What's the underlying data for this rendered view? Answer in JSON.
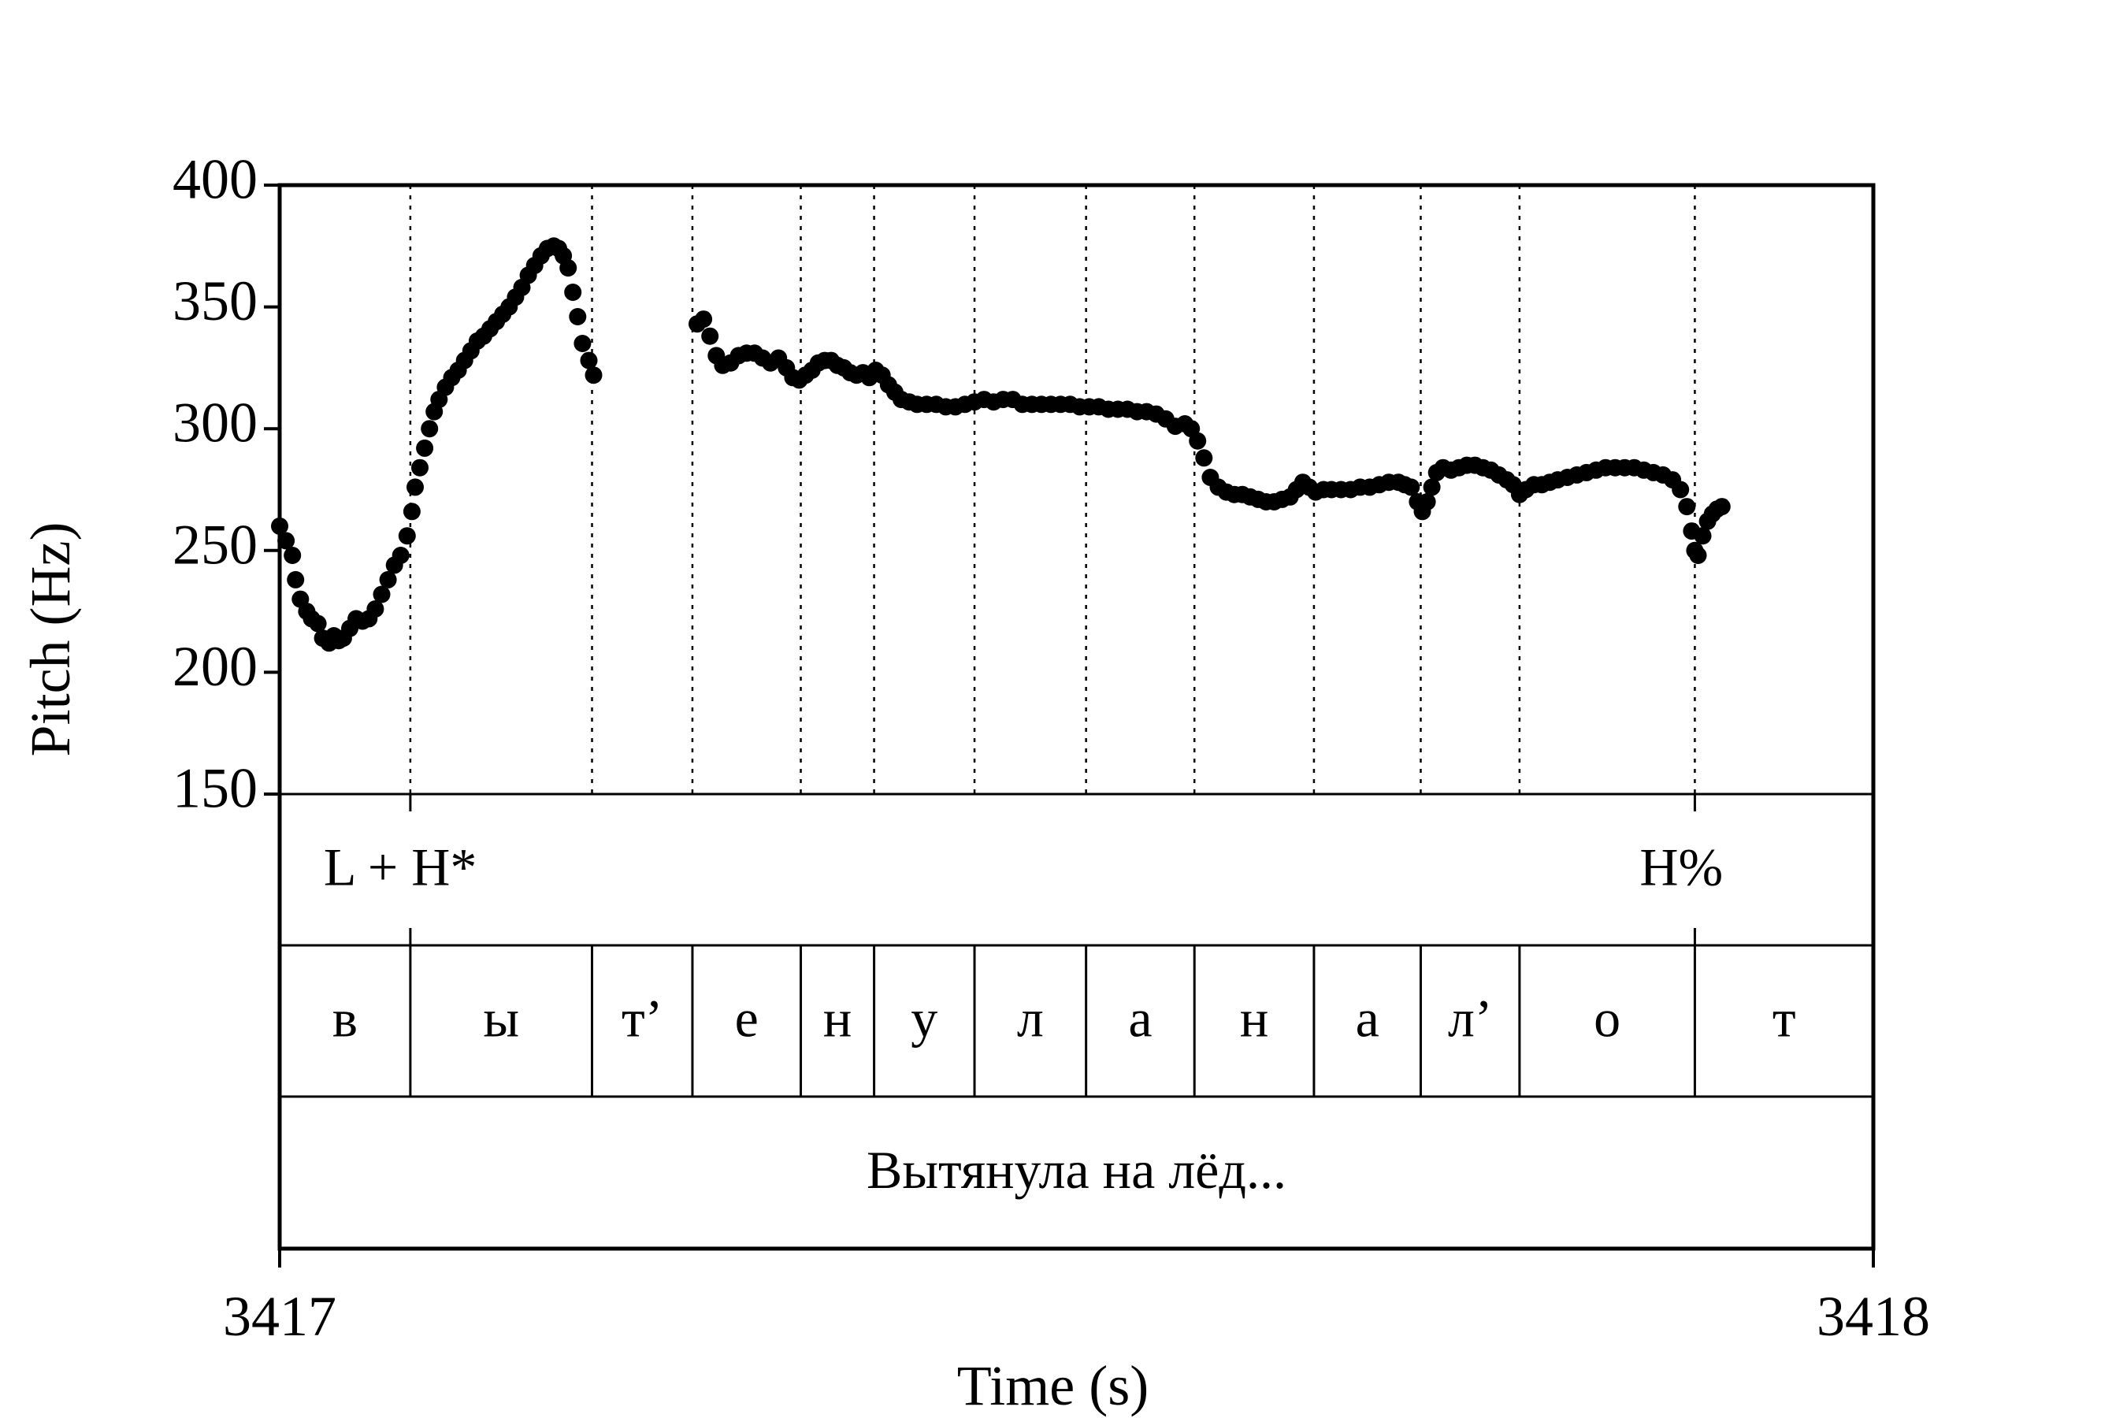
{
  "chart_data": {
    "type": "scatter",
    "title": "",
    "xlabel": "Time (s)",
    "ylabel": "Pitch (Hz)",
    "xlim": [
      3417,
      3418
    ],
    "ylim": [
      150,
      400
    ],
    "x_tick_labels": [
      "3417",
      "3418"
    ],
    "y_tick_labels": [
      "150",
      "200",
      "250",
      "300",
      "350",
      "400"
    ],
    "y_ticks": [
      150,
      200,
      250,
      300,
      350,
      400
    ],
    "x_ticks": [
      3417,
      3418
    ],
    "grid": false,
    "boundaries": [
      3417.082,
      3417.196,
      3417.259,
      3417.327,
      3417.373,
      3417.436,
      3417.506,
      3417.574,
      3417.649,
      3417.716,
      3417.778,
      3417.888
    ],
    "tone_tier": [
      {
        "label": "L + H*",
        "time": 3417.082
      },
      {
        "label": "H%",
        "time": 3417.888
      }
    ],
    "segment_tier": {
      "boundaries": [
        3417.0,
        3417.082,
        3417.196,
        3417.259,
        3417.327,
        3417.373,
        3417.436,
        3417.506,
        3417.574,
        3417.649,
        3417.716,
        3417.778,
        3417.888,
        3418.0
      ],
      "labels": [
        "в",
        "ы",
        "т’",
        "е",
        "н",
        "у",
        "л",
        "а",
        "н",
        "а",
        "л’",
        "о",
        "т"
      ]
    },
    "phrase_tier": {
      "label": "Вытянула на лёд...",
      "start": 3417.0,
      "end": 3418.0
    },
    "series": [
      {
        "points": [
          [
            3417.0,
            260
          ],
          [
            3417.004,
            254
          ],
          [
            3417.008,
            248
          ],
          [
            3417.01,
            238
          ],
          [
            3417.013,
            230
          ],
          [
            3417.017,
            225
          ],
          [
            3417.02,
            222
          ],
          [
            3417.024,
            220
          ],
          [
            3417.027,
            214
          ],
          [
            3417.031,
            212
          ],
          [
            3417.034,
            215
          ],
          [
            3417.037,
            213
          ],
          [
            3417.04,
            214
          ],
          [
            3417.044,
            218
          ],
          [
            3417.048,
            222
          ],
          [
            3417.052,
            221
          ],
          [
            3417.056,
            222
          ],
          [
            3417.06,
            226
          ],
          [
            3417.064,
            232
          ],
          [
            3417.068,
            238
          ],
          [
            3417.072,
            244
          ],
          [
            3417.076,
            248
          ],
          [
            3417.08,
            256
          ],
          [
            3417.083,
            266
          ],
          [
            3417.085,
            276
          ],
          [
            3417.088,
            284
          ],
          [
            3417.091,
            292
          ],
          [
            3417.094,
            300
          ],
          [
            3417.097,
            307
          ],
          [
            3417.1,
            312
          ],
          [
            3417.104,
            317
          ],
          [
            3417.108,
            321
          ],
          [
            3417.112,
            324
          ],
          [
            3417.116,
            328
          ],
          [
            3417.12,
            332
          ],
          [
            3417.124,
            336
          ],
          [
            3417.128,
            338
          ],
          [
            3417.132,
            341
          ],
          [
            3417.136,
            344
          ],
          [
            3417.14,
            347
          ],
          [
            3417.144,
            350
          ],
          [
            3417.148,
            354
          ],
          [
            3417.152,
            358
          ],
          [
            3417.156,
            363
          ],
          [
            3417.16,
            367
          ],
          [
            3417.164,
            371
          ],
          [
            3417.168,
            374
          ],
          [
            3417.172,
            375
          ],
          [
            3417.175,
            374
          ],
          [
            3417.178,
            371
          ],
          [
            3417.181,
            366
          ],
          [
            3417.184,
            356
          ],
          [
            3417.187,
            346
          ],
          [
            3417.19,
            335
          ],
          [
            3417.194,
            328
          ],
          [
            3417.197,
            322
          ],
          [
            3417.262,
            343
          ],
          [
            3417.266,
            345
          ],
          [
            3417.27,
            338
          ],
          [
            3417.274,
            330
          ],
          [
            3417.278,
            326
          ],
          [
            3417.283,
            327
          ],
          [
            3417.288,
            330
          ],
          [
            3417.293,
            331
          ],
          [
            3417.298,
            331
          ],
          [
            3417.303,
            329
          ],
          [
            3417.308,
            327
          ],
          [
            3417.313,
            329
          ],
          [
            3417.318,
            325
          ],
          [
            3417.322,
            321
          ],
          [
            3417.326,
            320
          ],
          [
            3417.33,
            322
          ],
          [
            3417.334,
            324
          ],
          [
            3417.338,
            327
          ],
          [
            3417.342,
            328
          ],
          [
            3417.346,
            328
          ],
          [
            3417.35,
            326
          ],
          [
            3417.354,
            325
          ],
          [
            3417.358,
            323
          ],
          [
            3417.362,
            322
          ],
          [
            3417.366,
            323
          ],
          [
            3417.37,
            321
          ],
          [
            3417.374,
            324
          ],
          [
            3417.378,
            322
          ],
          [
            3417.382,
            318
          ],
          [
            3417.386,
            315
          ],
          [
            3417.39,
            312
          ],
          [
            3417.395,
            311
          ],
          [
            3417.4,
            310
          ],
          [
            3417.406,
            310
          ],
          [
            3417.412,
            310
          ],
          [
            3417.418,
            309
          ],
          [
            3417.424,
            309
          ],
          [
            3417.43,
            310
          ],
          [
            3417.436,
            311
          ],
          [
            3417.442,
            312
          ],
          [
            3417.448,
            311
          ],
          [
            3417.454,
            312
          ],
          [
            3417.46,
            312
          ],
          [
            3417.466,
            310
          ],
          [
            3417.472,
            310
          ],
          [
            3417.478,
            310
          ],
          [
            3417.484,
            310
          ],
          [
            3417.49,
            310
          ],
          [
            3417.496,
            310
          ],
          [
            3417.502,
            309
          ],
          [
            3417.508,
            309
          ],
          [
            3417.514,
            309
          ],
          [
            3417.52,
            308
          ],
          [
            3417.526,
            308
          ],
          [
            3417.532,
            308
          ],
          [
            3417.538,
            307
          ],
          [
            3417.544,
            307
          ],
          [
            3417.55,
            306
          ],
          [
            3417.556,
            304
          ],
          [
            3417.562,
            301
          ],
          [
            3417.568,
            302
          ],
          [
            3417.572,
            300
          ],
          [
            3417.576,
            295
          ],
          [
            3417.58,
            288
          ],
          [
            3417.584,
            280
          ],
          [
            3417.589,
            276
          ],
          [
            3417.594,
            274
          ],
          [
            3417.599,
            273
          ],
          [
            3417.604,
            273
          ],
          [
            3417.609,
            272
          ],
          [
            3417.614,
            271
          ],
          [
            3417.619,
            270
          ],
          [
            3417.624,
            270
          ],
          [
            3417.629,
            271
          ],
          [
            3417.634,
            272
          ],
          [
            3417.638,
            275
          ],
          [
            3417.642,
            278
          ],
          [
            3417.646,
            276
          ],
          [
            3417.65,
            274
          ],
          [
            3417.655,
            275
          ],
          [
            3417.66,
            275
          ],
          [
            3417.666,
            275
          ],
          [
            3417.672,
            275
          ],
          [
            3417.678,
            276
          ],
          [
            3417.684,
            276
          ],
          [
            3417.69,
            277
          ],
          [
            3417.696,
            278
          ],
          [
            3417.702,
            278
          ],
          [
            3417.706,
            277
          ],
          [
            3417.71,
            276
          ],
          [
            3417.714,
            270
          ],
          [
            3417.717,
            266
          ],
          [
            3417.72,
            270
          ],
          [
            3417.723,
            276
          ],
          [
            3417.726,
            282
          ],
          [
            3417.73,
            284
          ],
          [
            3417.735,
            283
          ],
          [
            3417.74,
            284
          ],
          [
            3417.745,
            285
          ],
          [
            3417.75,
            285
          ],
          [
            3417.755,
            284
          ],
          [
            3417.76,
            283
          ],
          [
            3417.765,
            281
          ],
          [
            3417.77,
            279
          ],
          [
            3417.774,
            277
          ],
          [
            3417.778,
            273
          ],
          [
            3417.782,
            275
          ],
          [
            3417.787,
            277
          ],
          [
            3417.792,
            277
          ],
          [
            3417.797,
            278
          ],
          [
            3417.802,
            279
          ],
          [
            3417.808,
            280
          ],
          [
            3417.814,
            281
          ],
          [
            3417.82,
            282
          ],
          [
            3417.826,
            283
          ],
          [
            3417.832,
            284
          ],
          [
            3417.838,
            284
          ],
          [
            3417.844,
            284
          ],
          [
            3417.85,
            284
          ],
          [
            3417.856,
            283
          ],
          [
            3417.862,
            282
          ],
          [
            3417.868,
            281
          ],
          [
            3417.874,
            279
          ],
          [
            3417.879,
            275
          ],
          [
            3417.883,
            268
          ],
          [
            3417.886,
            258
          ],
          [
            3417.888,
            250
          ],
          [
            3417.89,
            248
          ],
          [
            3417.893,
            256
          ],
          [
            3417.896,
            262
          ],
          [
            3417.899,
            265
          ],
          [
            3417.902,
            267
          ],
          [
            3417.905,
            268
          ]
        ]
      }
    ]
  }
}
